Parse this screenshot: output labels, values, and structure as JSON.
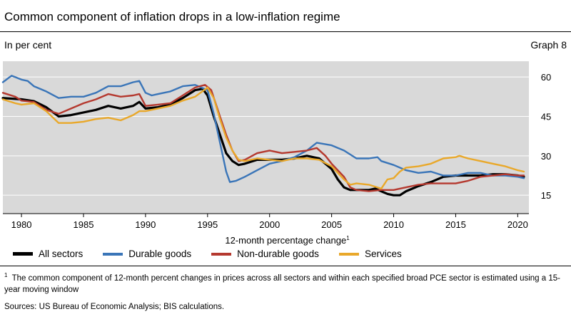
{
  "header": {
    "title": "Common component of inflation drops in a low-inflation regime",
    "subtitle": "In per cent",
    "graph_label": "Graph 8"
  },
  "chart_data": {
    "type": "line",
    "title": "Common component of inflation drops in a low-inflation regime",
    "xlabel": "12-month percentage change",
    "xlabel_sup": "1",
    "ylabel": "In per cent",
    "xlim": [
      1978.5,
      2020.9
    ],
    "ylim": [
      8,
      66
    ],
    "y_ticks": [
      15,
      30,
      45,
      60
    ],
    "x_ticks": [
      1980,
      1985,
      1990,
      1995,
      2000,
      2005,
      2010,
      2015,
      2020
    ],
    "grid": "horizontal",
    "series": [
      {
        "name": "All sectors",
        "color": "#000000",
        "points": [
          [
            1978.5,
            52
          ],
          [
            1980,
            51.5
          ],
          [
            1981,
            50.8
          ],
          [
            1982,
            48.5
          ],
          [
            1983,
            45
          ],
          [
            1984,
            45.5
          ],
          [
            1985,
            46.5
          ],
          [
            1986,
            47.5
          ],
          [
            1987,
            49
          ],
          [
            1988,
            48
          ],
          [
            1989,
            49
          ],
          [
            1989.5,
            50.5
          ],
          [
            1990,
            48
          ],
          [
            1991,
            48.5
          ],
          [
            1992,
            49.5
          ],
          [
            1993,
            52
          ],
          [
            1994,
            55
          ],
          [
            1994.6,
            55.5
          ],
          [
            1995,
            53
          ],
          [
            1995.5,
            45
          ],
          [
            1996,
            38
          ],
          [
            1996.5,
            31
          ],
          [
            1997,
            28
          ],
          [
            1997.5,
            26.5
          ],
          [
            1998,
            27
          ],
          [
            1999,
            28.5
          ],
          [
            2000,
            28.5
          ],
          [
            2001,
            28.5
          ],
          [
            2002,
            29
          ],
          [
            2003,
            30
          ],
          [
            2004,
            29
          ],
          [
            2005,
            25
          ],
          [
            2005.5,
            21
          ],
          [
            2006,
            18
          ],
          [
            2006.5,
            17
          ],
          [
            2007,
            17
          ],
          [
            2008,
            17
          ],
          [
            2008.5,
            17.5
          ],
          [
            2009,
            16.5
          ],
          [
            2009.5,
            15.5
          ],
          [
            2010,
            15
          ],
          [
            2010.5,
            15
          ],
          [
            2011,
            16.5
          ],
          [
            2012,
            18.5
          ],
          [
            2013,
            20
          ],
          [
            2014,
            22
          ],
          [
            2015,
            22.5
          ],
          [
            2016,
            22.5
          ],
          [
            2017,
            22.5
          ],
          [
            2018,
            23
          ],
          [
            2019,
            23
          ],
          [
            2020,
            22.5
          ],
          [
            2020.5,
            22
          ]
        ]
      },
      {
        "name": "Durable goods",
        "color": "#3a75b8",
        "points": [
          [
            1978.5,
            58
          ],
          [
            1979.2,
            60.5
          ],
          [
            1980,
            59
          ],
          [
            1980.5,
            58.5
          ],
          [
            1981,
            56.5
          ],
          [
            1982,
            54.5
          ],
          [
            1983,
            52
          ],
          [
            1984,
            52.5
          ],
          [
            1985,
            52.5
          ],
          [
            1986,
            54
          ],
          [
            1987,
            56.5
          ],
          [
            1988,
            56.5
          ],
          [
            1989,
            58
          ],
          [
            1989.5,
            58.5
          ],
          [
            1990,
            54
          ],
          [
            1990.5,
            53
          ],
          [
            1991,
            53.5
          ],
          [
            1992,
            54.5
          ],
          [
            1993,
            56.5
          ],
          [
            1994,
            57
          ],
          [
            1995,
            55
          ],
          [
            1995.5,
            46
          ],
          [
            1996,
            35
          ],
          [
            1996.5,
            24
          ],
          [
            1996.8,
            20
          ],
          [
            1997.3,
            20.5
          ],
          [
            1998,
            22
          ],
          [
            1999,
            24.5
          ],
          [
            2000,
            27
          ],
          [
            2001,
            28
          ],
          [
            2002,
            29.5
          ],
          [
            2003,
            32
          ],
          [
            2003.8,
            35
          ],
          [
            2005,
            34
          ],
          [
            2006,
            32
          ],
          [
            2007,
            29
          ],
          [
            2008,
            29
          ],
          [
            2008.7,
            29.5
          ],
          [
            2009,
            28
          ],
          [
            2010,
            26.5
          ],
          [
            2011,
            24.5
          ],
          [
            2012,
            23.5
          ],
          [
            2013,
            24
          ],
          [
            2014,
            22.5
          ],
          [
            2015,
            22.5
          ],
          [
            2016,
            23.5
          ],
          [
            2017,
            23.5
          ],
          [
            2018,
            22.5
          ],
          [
            2019,
            22.5
          ],
          [
            2020,
            22
          ],
          [
            2020.5,
            21.5
          ]
        ]
      },
      {
        "name": "Non-durable goods",
        "color": "#b5392f",
        "points": [
          [
            1978.5,
            54
          ],
          [
            1979.5,
            52.5
          ],
          [
            1980,
            51
          ],
          [
            1981,
            50.5
          ],
          [
            1982,
            47.5
          ],
          [
            1983,
            46
          ],
          [
            1984,
            48
          ],
          [
            1985,
            50
          ],
          [
            1986,
            51.5
          ],
          [
            1987,
            53.5
          ],
          [
            1988,
            52.5
          ],
          [
            1989,
            53
          ],
          [
            1989.5,
            53.5
          ],
          [
            1990,
            49
          ],
          [
            1991,
            49.5
          ],
          [
            1992,
            50
          ],
          [
            1993,
            53
          ],
          [
            1994,
            56
          ],
          [
            1994.8,
            57
          ],
          [
            1995.3,
            55
          ],
          [
            1996,
            45
          ],
          [
            1996.5,
            38
          ],
          [
            1997,
            32
          ],
          [
            1997.5,
            28
          ],
          [
            1998,
            28.5
          ],
          [
            1999,
            31
          ],
          [
            2000,
            32
          ],
          [
            2001,
            31
          ],
          [
            2002,
            31.5
          ],
          [
            2003,
            32
          ],
          [
            2003.8,
            33
          ],
          [
            2004.5,
            30
          ],
          [
            2005,
            27
          ],
          [
            2006,
            22
          ],
          [
            2006.5,
            18
          ],
          [
            2007,
            17
          ],
          [
            2008,
            16.5
          ],
          [
            2009,
            17
          ],
          [
            2010,
            17
          ],
          [
            2011,
            18
          ],
          [
            2012,
            19
          ],
          [
            2013,
            19.5
          ],
          [
            2014,
            19.5
          ],
          [
            2015,
            19.5
          ],
          [
            2016,
            20.5
          ],
          [
            2017,
            22
          ],
          [
            2018,
            22.5
          ],
          [
            2019,
            23
          ],
          [
            2020,
            22.5
          ],
          [
            2020.5,
            22.5
          ]
        ]
      },
      {
        "name": "Services",
        "color": "#e9a82a",
        "points": [
          [
            1978.5,
            51.5
          ],
          [
            1979.5,
            50
          ],
          [
            1980,
            49.5
          ],
          [
            1981,
            50
          ],
          [
            1982,
            47
          ],
          [
            1983,
            42.5
          ],
          [
            1984,
            42.5
          ],
          [
            1985,
            43
          ],
          [
            1986,
            44
          ],
          [
            1987,
            44.5
          ],
          [
            1988,
            43.5
          ],
          [
            1989,
            45.5
          ],
          [
            1989.5,
            47
          ],
          [
            1990,
            47
          ],
          [
            1991,
            48
          ],
          [
            1992,
            49
          ],
          [
            1993,
            51
          ],
          [
            1994,
            52.5
          ],
          [
            1995,
            56
          ],
          [
            1995.5,
            52
          ],
          [
            1996,
            44
          ],
          [
            1996.5,
            37
          ],
          [
            1997,
            32
          ],
          [
            1997.5,
            28.5
          ],
          [
            1998,
            28
          ],
          [
            1999,
            29
          ],
          [
            2000,
            28.5
          ],
          [
            2001,
            28
          ],
          [
            2002,
            29
          ],
          [
            2003,
            29
          ],
          [
            2004,
            28.5
          ],
          [
            2005,
            26
          ],
          [
            2006,
            21
          ],
          [
            2006.5,
            19
          ],
          [
            2007,
            19.5
          ],
          [
            2008,
            19
          ],
          [
            2009,
            17.5
          ],
          [
            2009.5,
            21
          ],
          [
            2010,
            21.5
          ],
          [
            2010.5,
            24
          ],
          [
            2011,
            25.5
          ],
          [
            2012,
            26
          ],
          [
            2013,
            27
          ],
          [
            2014,
            29
          ],
          [
            2015,
            29.5
          ],
          [
            2015.3,
            30
          ],
          [
            2016,
            29
          ],
          [
            2017,
            28
          ],
          [
            2018,
            27
          ],
          [
            2019,
            26
          ],
          [
            2020,
            24.5
          ],
          [
            2020.5,
            24
          ]
        ]
      }
    ]
  },
  "footnote": {
    "marker": "1",
    "text": "The common component of 12-month percent changes in prices across all sectors and within each specified broad PCE sector is estimated using a 15-year moving window"
  },
  "sources": "Sources: US Bureau of Economic Analysis; BIS calculations."
}
